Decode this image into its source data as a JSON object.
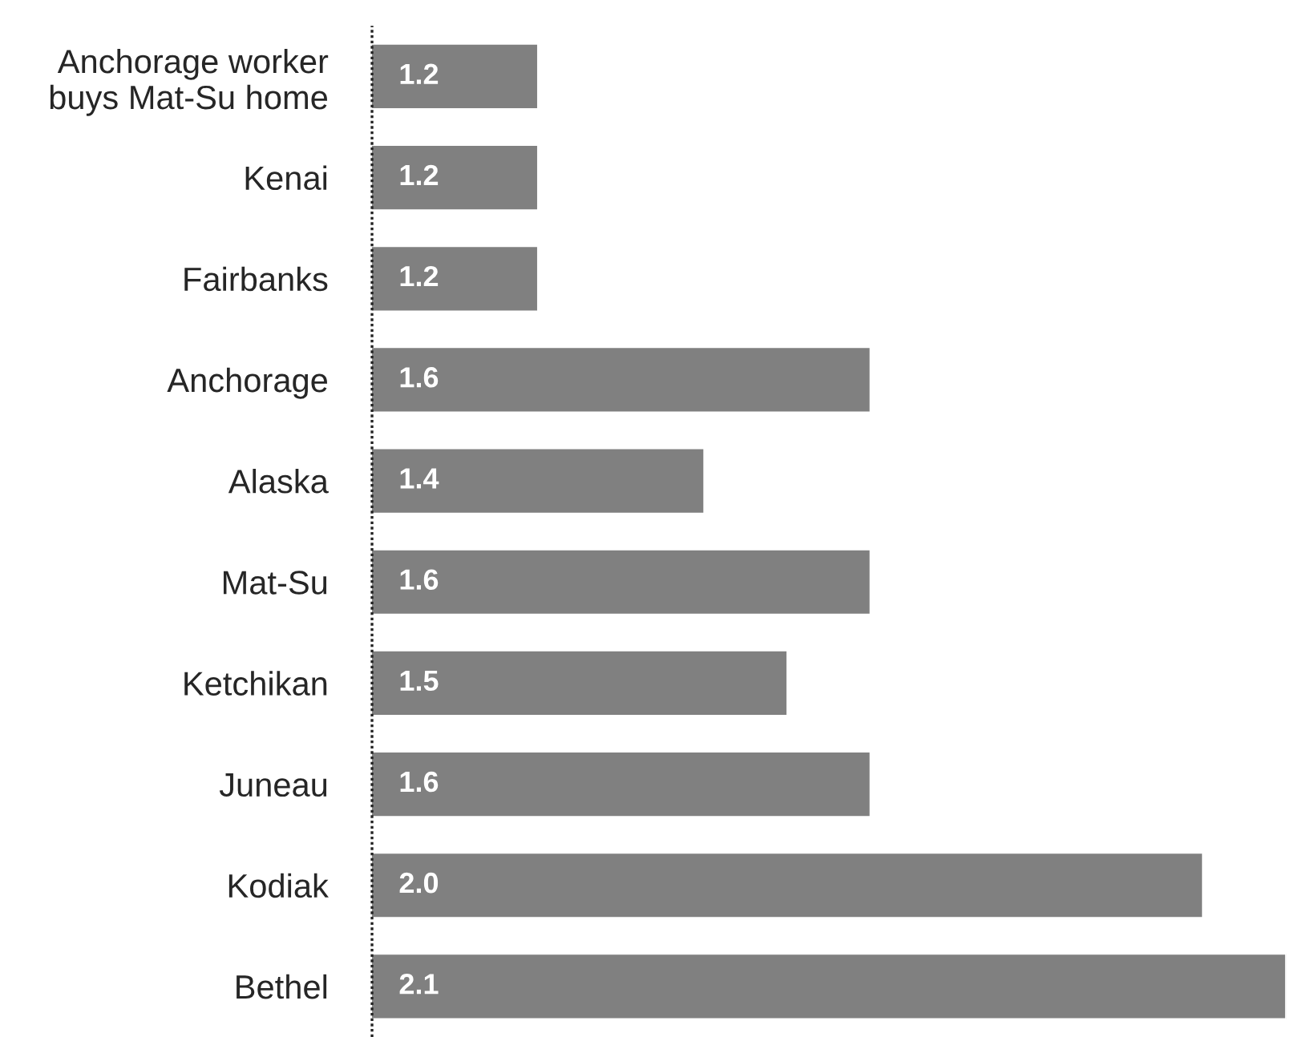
{
  "chart_data": {
    "type": "bar",
    "orientation": "horizontal",
    "categories": [
      "Anchorage worker\nbuys Mat-Su home",
      "Kenai",
      "Fairbanks",
      "Anchorage",
      "Alaska",
      "Mat-Su",
      "Ketchikan",
      "Juneau",
      "Kodiak",
      "Bethel"
    ],
    "values": [
      1.2,
      1.2,
      1.2,
      1.6,
      1.4,
      1.6,
      1.5,
      1.6,
      2.0,
      2.1
    ],
    "value_labels": [
      "1.2",
      "1.2",
      "1.2",
      "1.6",
      "1.4",
      "1.6",
      "1.5",
      "1.6",
      "2.0",
      "2.1"
    ],
    "color": "#808080",
    "ref_lines": [
      {
        "axis": "x",
        "value": 1.0,
        "line_style": "dotted",
        "color": "#222222"
      }
    ],
    "tick_labels": "y",
    "grid": false,
    "legend": false
  }
}
